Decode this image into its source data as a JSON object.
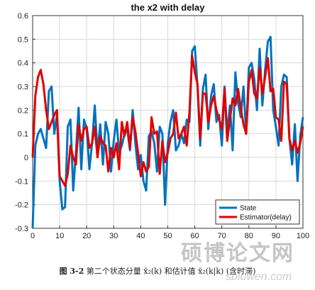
{
  "chart_data": {
    "type": "line",
    "title": "the x2 with delay",
    "xlabel": "",
    "ylabel": "",
    "xlim": [
      0,
      100
    ],
    "ylim": [
      -0.3,
      0.6
    ],
    "xticks": [
      0,
      10,
      20,
      30,
      40,
      50,
      60,
      70,
      80,
      90,
      100
    ],
    "yticks": [
      -0.3,
      -0.2,
      -0.1,
      0,
      0.1,
      0.2,
      0.3,
      0.4,
      0.5,
      0.6
    ],
    "xtick_labels": [
      "0",
      "10",
      "20",
      "30",
      "40",
      "50",
      "60",
      "70",
      "80",
      "90",
      "100"
    ],
    "ytick_labels": [
      "-0.3",
      "-0.2",
      "-0.1",
      "0",
      "0.1",
      "0.2",
      "0.3",
      "0.4",
      "0.5",
      "0.6"
    ],
    "grid": true,
    "legend_position": "bottom-right",
    "series": [
      {
        "name": "State",
        "color": "#0072BD",
        "x": [
          0,
          1,
          2,
          3,
          4,
          5,
          6,
          7,
          8,
          9,
          10,
          11,
          12,
          13,
          14,
          15,
          16,
          17,
          18,
          19,
          20,
          21,
          22,
          23,
          24,
          25,
          26,
          27,
          28,
          29,
          30,
          31,
          32,
          33,
          34,
          35,
          36,
          37,
          38,
          39,
          40,
          41,
          42,
          43,
          44,
          45,
          46,
          47,
          48,
          49,
          50,
          51,
          52,
          53,
          54,
          55,
          56,
          57,
          58,
          59,
          60,
          61,
          62,
          63,
          64,
          65,
          66,
          67,
          68,
          69,
          70,
          71,
          72,
          73,
          74,
          75,
          76,
          77,
          78,
          79,
          80,
          81,
          82,
          83,
          84,
          85,
          86,
          87,
          88,
          89,
          90,
          91,
          92,
          93,
          94,
          95,
          96,
          97,
          98,
          99,
          100
        ],
        "y": [
          -0.3,
          0.05,
          0.1,
          0.12,
          0.08,
          0.04,
          0.28,
          0.3,
          0.1,
          0.18,
          -0.1,
          -0.22,
          -0.21,
          0.13,
          0.16,
          -0.14,
          0.02,
          0.21,
          -0.05,
          0.16,
          0.12,
          -0.05,
          0.06,
          0.22,
          0.02,
          0.14,
          -0.03,
          0.15,
          0.1,
          -0.06,
          0.07,
          0.16,
          0.02,
          0.05,
          0.1,
          0.12,
          0.03,
          0.2,
          0.06,
          -0.05,
          0.01,
          -0.1,
          -0.14,
          0.09,
          0.11,
          0.06,
          -0.06,
          0.13,
          0.1,
          -0.2,
          0.06,
          0.15,
          0.2,
          0.03,
          0.05,
          0.1,
          0.06,
          0.16,
          0.15,
          0.45,
          0.47,
          0.3,
          0.05,
          0.29,
          0.35,
          0.12,
          0.26,
          0.31,
          0.15,
          0.18,
          0.05,
          0.3,
          0.1,
          0.22,
          0.03,
          0.36,
          0.23,
          0.17,
          0.3,
          0.1,
          0.38,
          0.4,
          0.33,
          0.2,
          0.46,
          0.22,
          0.37,
          0.49,
          0.51,
          0.2,
          0.13,
          0.05,
          0.3,
          0.35,
          0.34,
          0.08,
          -0.03,
          0.14,
          -0.1,
          0.09,
          0.17
        ]
      },
      {
        "name": "Estimator(delay)",
        "color": "#E00000",
        "x": [
          0,
          1,
          2,
          3,
          4,
          5,
          6,
          7,
          8,
          9,
          10,
          11,
          12,
          13,
          14,
          15,
          16,
          17,
          18,
          19,
          20,
          21,
          22,
          23,
          24,
          25,
          26,
          27,
          28,
          29,
          30,
          31,
          32,
          33,
          34,
          35,
          36,
          37,
          38,
          39,
          40,
          41,
          42,
          43,
          44,
          45,
          46,
          47,
          48,
          49,
          50,
          51,
          52,
          53,
          54,
          55,
          56,
          57,
          58,
          59,
          60,
          61,
          62,
          63,
          64,
          65,
          66,
          67,
          68,
          69,
          70,
          71,
          72,
          73,
          74,
          75,
          76,
          77,
          78,
          79,
          80,
          81,
          82,
          83,
          84,
          85,
          86,
          87,
          88,
          89,
          90,
          91,
          92,
          93,
          94,
          95,
          96,
          97,
          98,
          99,
          100
        ],
        "y": [
          0.0,
          0.26,
          0.34,
          0.37,
          0.31,
          0.2,
          0.12,
          0.15,
          0.18,
          0.2,
          -0.08,
          -0.1,
          -0.12,
          -0.07,
          0.05,
          0.0,
          -0.03,
          0.14,
          0.07,
          0.12,
          0.13,
          0.04,
          0.06,
          0.13,
          0.0,
          0.09,
          0.06,
          0.05,
          -0.06,
          0.04,
          0.0,
          0.06,
          -0.05,
          0.15,
          0.09,
          0.15,
          0.04,
          0.17,
          0.11,
          0.02,
          -0.08,
          -0.02,
          -0.06,
          -0.04,
          0.17,
          0.1,
          0.11,
          -0.07,
          0.07,
          -0.02,
          0.02,
          0.08,
          0.1,
          0.19,
          0.08,
          0.1,
          0.13,
          0.05,
          0.19,
          0.43,
          0.36,
          0.31,
          0.08,
          0.27,
          0.27,
          0.15,
          0.22,
          0.26,
          0.2,
          0.16,
          0.12,
          0.29,
          0.07,
          0.16,
          0.25,
          0.22,
          0.29,
          0.21,
          0.14,
          0.1,
          0.32,
          0.37,
          0.27,
          0.25,
          0.38,
          0.27,
          0.34,
          0.42,
          0.28,
          0.29,
          0.17,
          0.16,
          0.07,
          0.32,
          0.31,
          0.08,
          0.03,
          0.07,
          0.02,
          0.06,
          0.13
        ]
      }
    ]
  },
  "caption": {
    "figure_number": "图 3-2",
    "text": "第二个状态分量 x̄₂(k) 和估计值 x̄₂(k|k) (含时滞)"
  },
  "watermark": {
    "text": "硕博论文网",
    "url": "sbluwen.com"
  }
}
